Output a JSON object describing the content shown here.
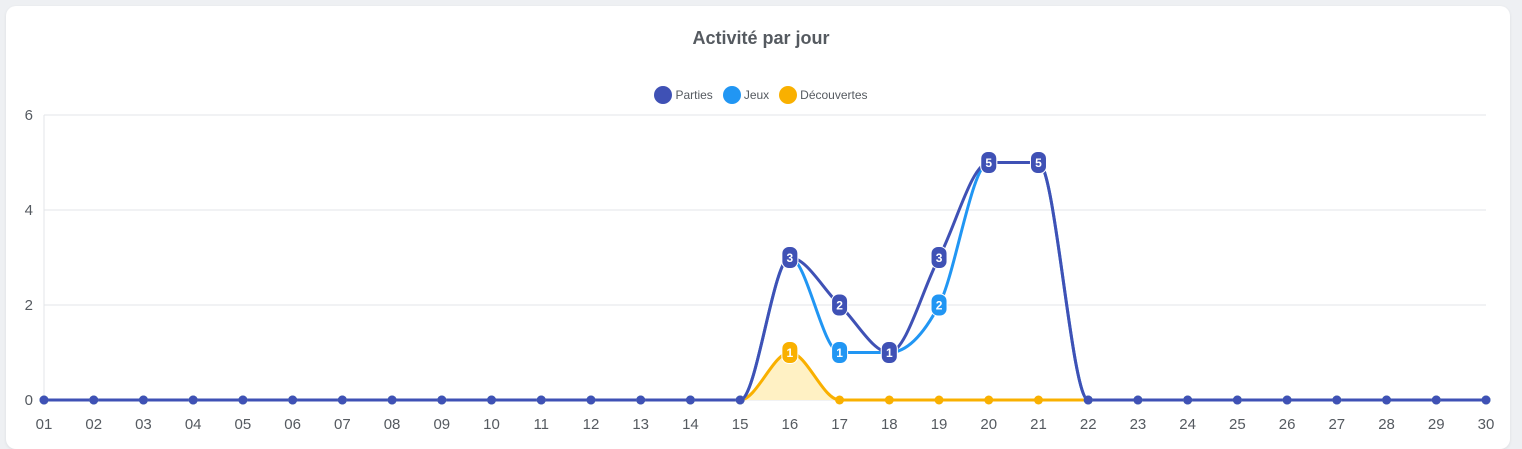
{
  "chart_data": {
    "type": "line",
    "title": "Activité par jour",
    "categories": [
      "01",
      "02",
      "03",
      "04",
      "05",
      "06",
      "07",
      "08",
      "09",
      "10",
      "11",
      "12",
      "13",
      "14",
      "15",
      "16",
      "17",
      "18",
      "19",
      "20",
      "21",
      "22",
      "23",
      "24",
      "25",
      "26",
      "27",
      "28",
      "29",
      "30"
    ],
    "ylim": [
      0,
      6
    ],
    "yticks": [
      0,
      2,
      4,
      6
    ],
    "grid": true,
    "legend_position": "top-center",
    "series": [
      {
        "name": "Parties",
        "color": "#3f51b5",
        "values": [
          0,
          0,
          0,
          0,
          0,
          0,
          0,
          0,
          0,
          0,
          0,
          0,
          0,
          0,
          0,
          3,
          2,
          1,
          3,
          5,
          5,
          0,
          0,
          0,
          0,
          0,
          0,
          0,
          0,
          0
        ]
      },
      {
        "name": "Jeux",
        "color": "#2196f3",
        "values": [
          0,
          0,
          0,
          0,
          0,
          0,
          0,
          0,
          0,
          0,
          0,
          0,
          0,
          0,
          0,
          3,
          1,
          1,
          2,
          5,
          5,
          0,
          0,
          0,
          0,
          0,
          0,
          0,
          0,
          0
        ]
      },
      {
        "name": "Découvertes",
        "color": "#f9b000",
        "fill": "#fff1c4",
        "values": [
          0,
          0,
          0,
          0,
          0,
          0,
          0,
          0,
          0,
          0,
          0,
          0,
          0,
          0,
          0,
          1,
          0,
          0,
          0,
          0,
          0,
          0,
          0,
          0,
          0,
          0,
          0,
          0,
          0,
          0
        ]
      }
    ]
  }
}
